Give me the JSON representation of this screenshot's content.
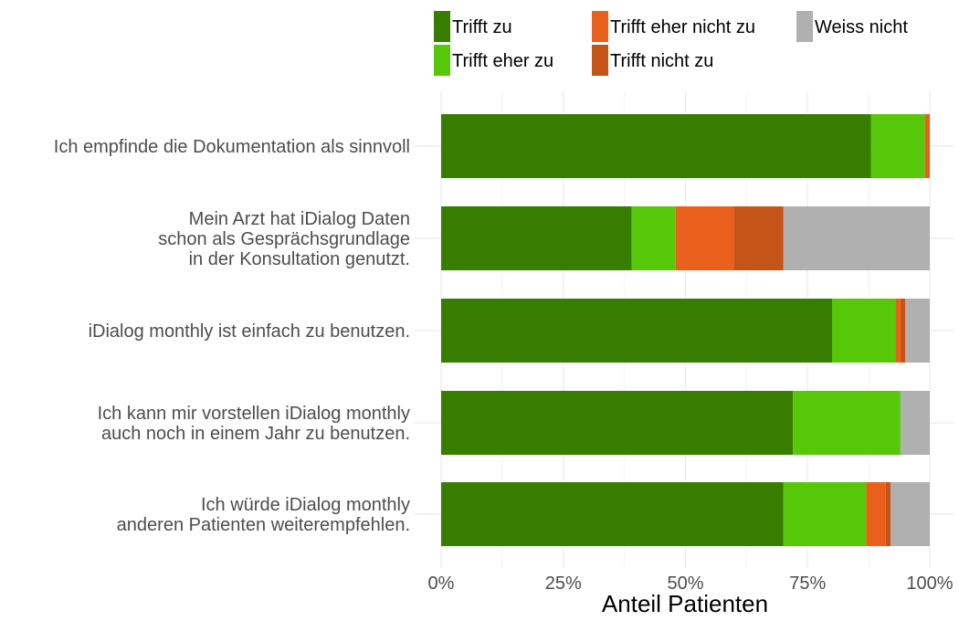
{
  "chart_data": {
    "type": "bar",
    "orientation": "horizontal",
    "stacked": true,
    "xlabel": "Anteil Patienten",
    "xlim": [
      0,
      100
    ],
    "xticks": [
      0,
      25,
      50,
      75,
      100
    ],
    "xtick_labels": [
      "0%",
      "25%",
      "50%",
      "75%",
      "100%"
    ],
    "grid": true,
    "legend_position": "top",
    "categories": [
      [
        "Ich empfinde die Dokumentation als sinnvoll"
      ],
      [
        "Mein Arzt hat iDialog Daten",
        "schon als Gesprächsgrundlage",
        "in der Konsultation genutzt."
      ],
      [
        "iDialog monthly ist einfach zu benutzen."
      ],
      [
        "Ich kann mir vorstellen iDialog monthly",
        "auch noch in einem Jahr zu benutzen."
      ],
      [
        "Ich würde iDialog monthly",
        "anderen Patienten weiterempfehlen."
      ]
    ],
    "series": [
      {
        "name": "Trifft zu",
        "color": "#377e00",
        "values": [
          88,
          39,
          80,
          72,
          70
        ]
      },
      {
        "name": "Trifft eher zu",
        "color": "#57c70a",
        "values": [
          11,
          9,
          13,
          22,
          17
        ]
      },
      {
        "name": "Trifft eher nicht zu",
        "color": "#e8601c",
        "values": [
          1,
          12,
          1,
          0,
          4
        ]
      },
      {
        "name": "Trifft nicht zu",
        "color": "#c45418",
        "values": [
          0,
          10,
          1,
          0,
          1
        ]
      },
      {
        "name": "Weiss nicht",
        "color": "#b0b0b0",
        "values": [
          0,
          30,
          5,
          6,
          8
        ]
      }
    ]
  }
}
